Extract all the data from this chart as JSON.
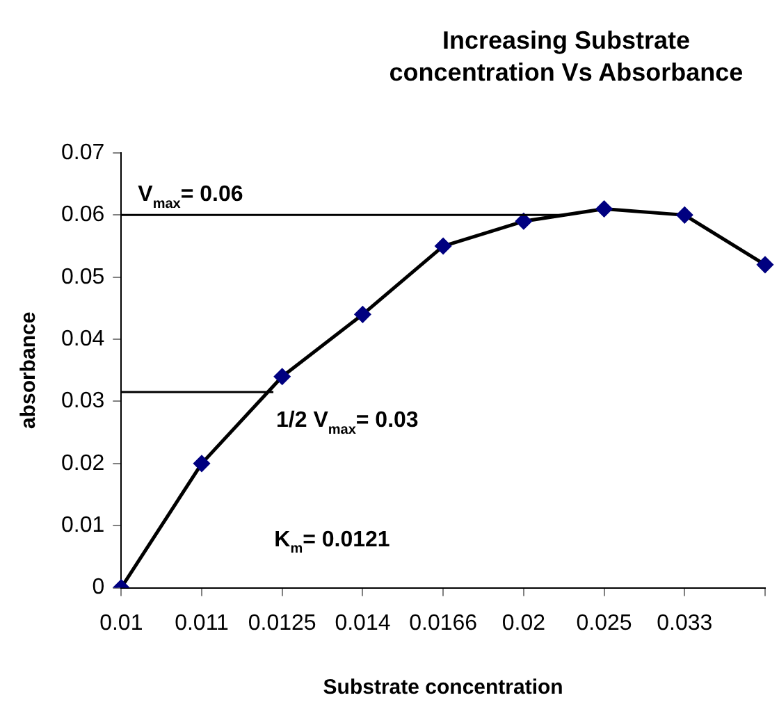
{
  "chart_data": {
    "type": "line",
    "title": "Increasing Substrate concentration Vs Absorbance",
    "xlabel": "Substrate concentration",
    "ylabel": "absorbance",
    "categories": [
      "0.01",
      "0.011",
      "0.0125",
      "0.014",
      "0.0166",
      "0.02",
      "0.025",
      "0.033",
      null
    ],
    "series": [
      {
        "color": "#000080",
        "values": [
          0,
          0.02,
          0.034,
          0.044,
          0.055,
          0.059,
          0.061,
          0.06,
          0.052
        ]
      }
    ],
    "ylim": [
      0,
      0.07
    ],
    "yticks": [
      0,
      0.01,
      0.02,
      0.03,
      0.04,
      0.05,
      0.06,
      0.07
    ],
    "ref_lines": [
      {
        "axis": "y",
        "value": 0.06,
        "label": "V$_{max}$= 0.06",
        "color": "#000000"
      },
      {
        "axis": "y",
        "value": 0.0315,
        "label": "1/2 V$_{max}$= 0.03",
        "color": "#000000"
      }
    ],
    "annotations": [
      "K$_{m}$= 0.0121"
    ],
    "grid": false,
    "legend": false,
    "marker": "diamond",
    "line_style": "solid"
  }
}
